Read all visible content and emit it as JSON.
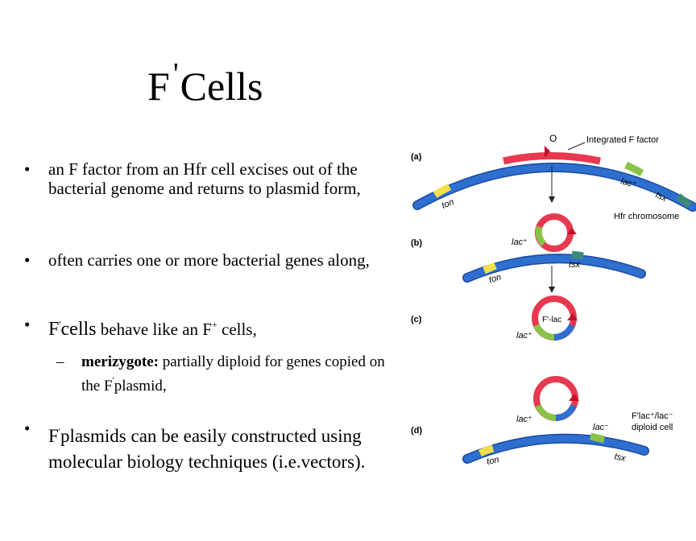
{
  "slide": {
    "title_pre": "F",
    "title_prime": "'",
    "title_post": "Cells",
    "bullets": [
      {
        "marker": "•",
        "text": "an F factor from an Hfr cell excises out of the bacterial genome and returns to plasmid form,"
      },
      {
        "marker": "•",
        "text": "often carries one or more bacterial genes along,"
      },
      {
        "marker": "•",
        "pre": "F",
        "sup1": "'",
        "mid": "cells",
        "post": " behave like an F",
        "sup2": "+",
        "end": " cells,"
      },
      {
        "marker": "–",
        "bold": "merizygote:",
        "text": " partially diploid for genes copied on the F",
        "sup": "'",
        "end": "plasmid,"
      },
      {
        "marker": "•",
        "pre": "F",
        "sup": "'",
        "text": "plasmids can be easily constructed using molecular biology techniques (i.e.vectors)."
      }
    ]
  },
  "figure": {
    "panel_a": "(a)",
    "panel_b": "(b)",
    "panel_c": "(c)",
    "panel_d": "(d)",
    "label_o": "O",
    "integrated_f": "Integrated F factor",
    "lac_plus": "lac⁺",
    "lac_minus": "lac⁻",
    "tsx": "tsx",
    "ton": "ton",
    "hfr_chromosome": "Hfr chromosome",
    "f_lac": "F′-lac",
    "diploid_line1": "F′lac⁺/lac⁻",
    "diploid_line2": "diploid cell",
    "colors": {
      "chromosome": "#2e6fd0",
      "f_factor": "#e8384f",
      "lac": "#8bc34a",
      "ton": "#f2e04a"
    }
  }
}
